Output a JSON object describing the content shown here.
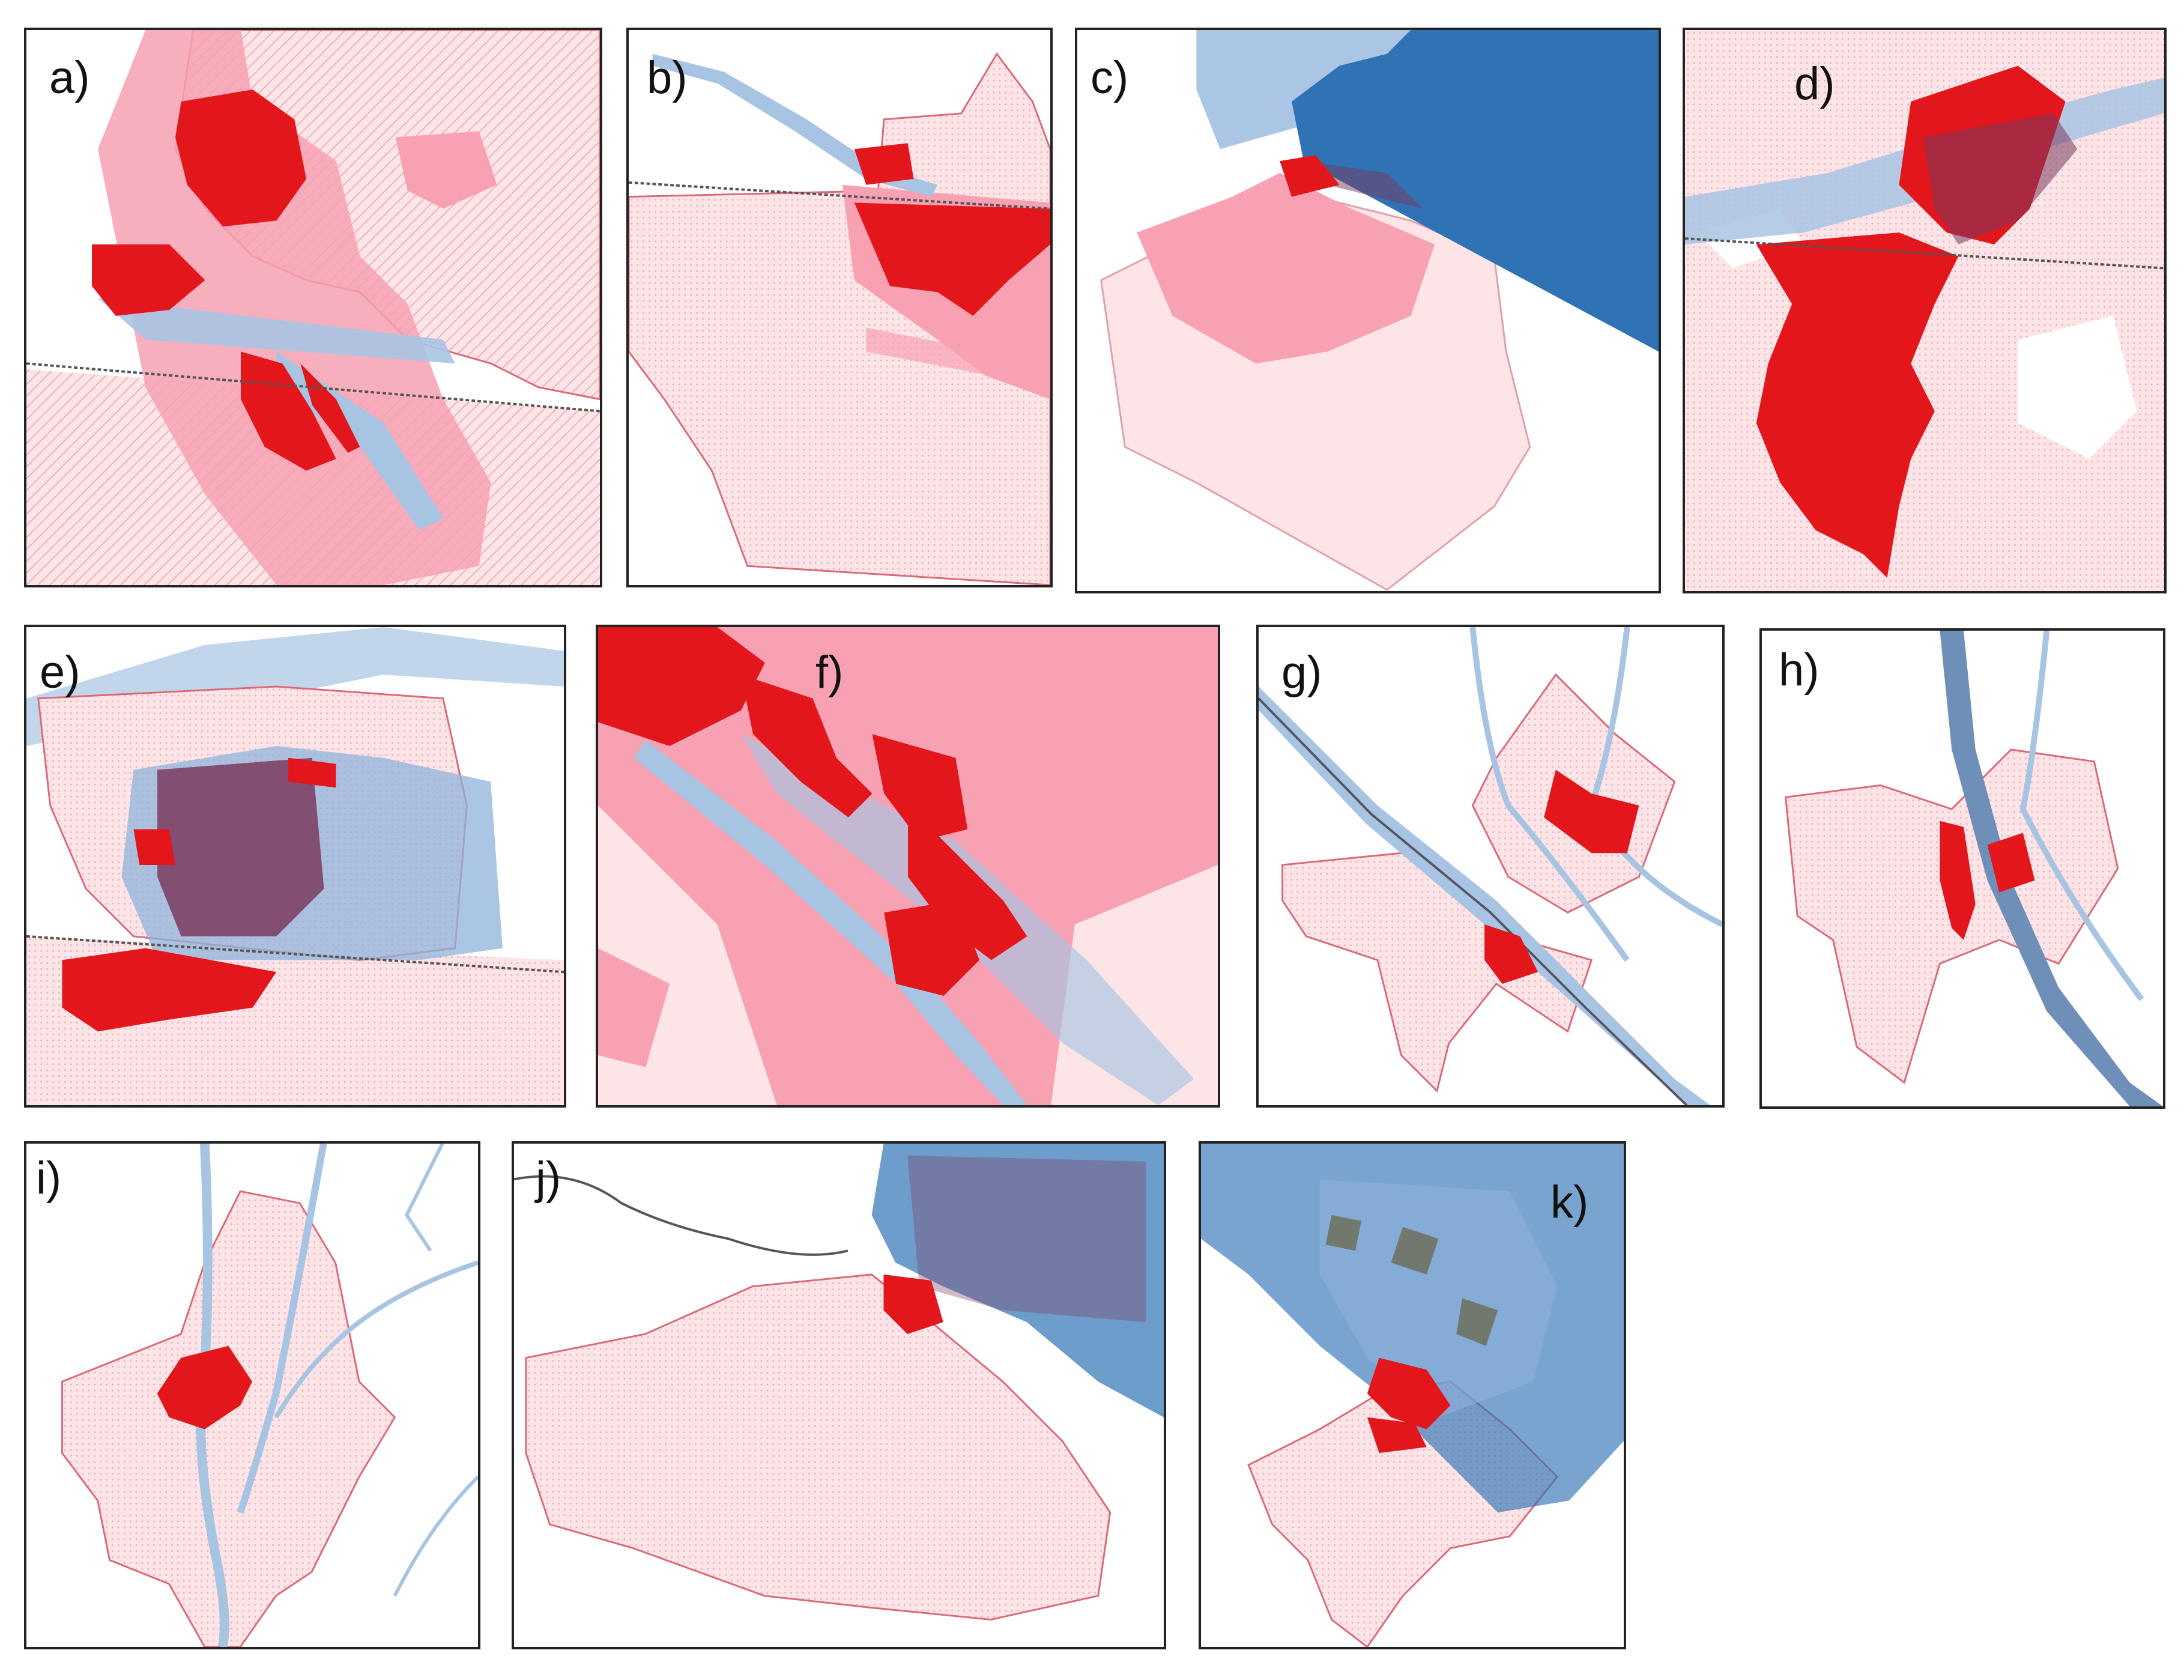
{
  "figure": {
    "panels": [
      {
        "key": "a",
        "label": "a)"
      },
      {
        "key": "b",
        "label": "b)"
      },
      {
        "key": "c",
        "label": "c)"
      },
      {
        "key": "d",
        "label": "d)"
      },
      {
        "key": "e",
        "label": "e)"
      },
      {
        "key": "f",
        "label": "f)"
      },
      {
        "key": "g",
        "label": "g)"
      },
      {
        "key": "h",
        "label": "h)"
      },
      {
        "key": "i",
        "label": "i)"
      },
      {
        "key": "j",
        "label": "j)"
      },
      {
        "key": "k",
        "label": "k)"
      }
    ]
  },
  "colors": {
    "urban_core": "#e3161b",
    "urban_area": "#f7a1b2",
    "municipal_boundary_fill": "#fde4e7",
    "boundary_stroke": "#d96b78",
    "water": "#a8c4e3",
    "river_line": "#6e8fb8",
    "flood_zone_dark": "#2f73b5",
    "flood_zone_light": "#8fb3dc",
    "overlap": "#7a3a5e",
    "border_line": "#555555"
  }
}
